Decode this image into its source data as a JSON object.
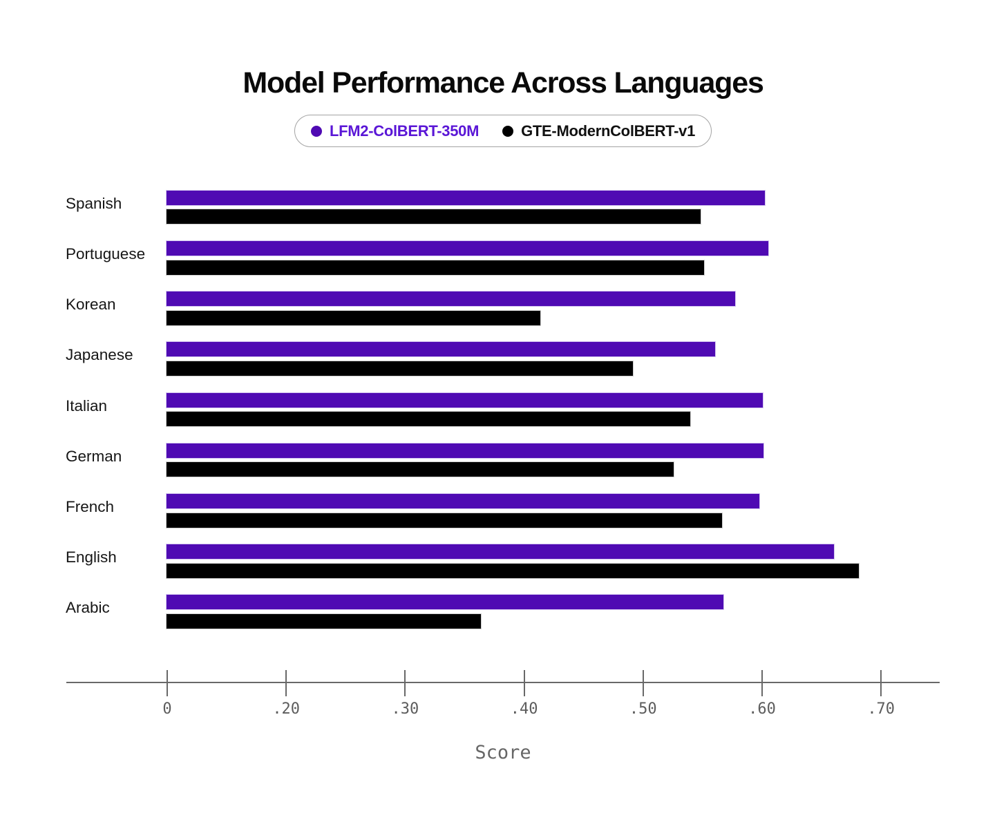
{
  "title": "Model Performance Across Languages",
  "legend": {
    "items": [
      {
        "label": "LFM2-ColBERT-350M",
        "text_color": "#5a16d6",
        "dot_color": "#4f0ab3"
      },
      {
        "label": "GTE-ModernColBERT-v1",
        "text_color": "#111111",
        "dot_color": "#000000"
      }
    ]
  },
  "chart_data": {
    "type": "bar",
    "orientation": "horizontal",
    "title": "Model Performance Across Languages",
    "xlabel": "Score",
    "ylabel": "",
    "categories": [
      "Spanish",
      "Portuguese",
      "Korean",
      "Japanese",
      "Italian",
      "German",
      "French",
      "English",
      "Arabic"
    ],
    "series": [
      {
        "name": "LFM2-ColBERT-350M",
        "color": "#4f0ab3",
        "values": [
          0.603,
          0.606,
          0.578,
          0.561,
          0.601,
          0.602,
          0.598,
          0.661,
          0.568
        ]
      },
      {
        "name": "GTE-ModernColBERT-v1",
        "color": "#000000",
        "values": [
          0.549,
          0.552,
          0.414,
          0.492,
          0.54,
          0.526,
          0.567,
          0.682,
          0.364
        ]
      }
    ],
    "x_ticks": {
      "values": [
        0,
        0.2,
        0.3,
        0.4,
        0.5,
        0.6,
        0.7
      ],
      "labels": [
        "0",
        ".20",
        ".30",
        ".40",
        ".50",
        ".60",
        ".70"
      ]
    },
    "axis_note": "tick marks equally spaced; first interval spans 0 to .20, later intervals .10 each",
    "xlim": [
      0,
      0.75
    ],
    "grid": false,
    "legend_position": "top-center"
  }
}
